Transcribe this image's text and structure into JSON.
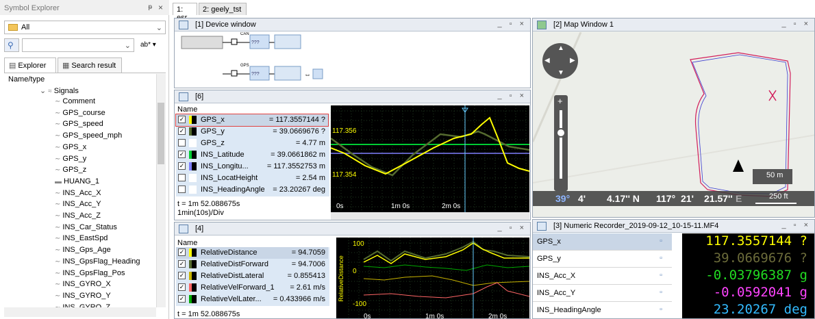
{
  "left_panel": {
    "title": "Symbol Explorer",
    "pin_icon": "pin-icon",
    "close_label": "×",
    "filter_value": "All",
    "search_value": "",
    "search_option": "ab*",
    "tabs": [
      {
        "label": "Explorer"
      },
      {
        "label": "Search result"
      }
    ],
    "tree_header": "Name/type",
    "tree_root": "Signals",
    "items": [
      "Comment",
      "GPS_course",
      "GPS_speed",
      "GPS_speed_mph",
      "GPS_x",
      "GPS_y",
      "GPS_z",
      "HUANG_1",
      "INS_Acc_X",
      "INS_Acc_Y",
      "INS_Acc_Z",
      "INS_Car_Status",
      "INS_EastSpd",
      "INS_Gps_Age",
      "INS_GpsFlag_Heading",
      "INS_GpsFlag_Pos",
      "INS_GYRO_X",
      "INS_GYRO_Y",
      "INS_GYRO_Z"
    ]
  },
  "doc_tabs": [
    "1: esr",
    "2: geely_tst"
  ],
  "device_window": {
    "title": "[1] Device window",
    "blocks": [
      "CAN",
      "GPS"
    ]
  },
  "plot6": {
    "title": "[6]",
    "col_header": "Name",
    "rows": [
      {
        "name": "GPS_x",
        "value": "= 117.3557144 ?",
        "checked": true,
        "color": "#ffff00"
      },
      {
        "name": "GPS_y",
        "value": "= 39.0669676 ?",
        "checked": true,
        "color": "#556b2f"
      },
      {
        "name": "GPS_z",
        "value": "= 4.77 m",
        "checked": false,
        "color": "#ffffff"
      },
      {
        "name": "INS_Latitude",
        "value": "= 39.0661862 m",
        "checked": true,
        "color": "#00cc33"
      },
      {
        "name": "INS_Longitu...",
        "value": "= 117.3552753 m",
        "checked": true,
        "color": "#8080ff"
      },
      {
        "name": "INS_LocatHeight",
        "value": "= 2.54 m",
        "checked": false,
        "color": "#ffffff"
      },
      {
        "name": "INS_HeadingAngle",
        "value": "= 23.20267 deg",
        "checked": false,
        "color": "#ffffff"
      }
    ],
    "time": "t = 1m 52.088675s",
    "div": "1min(10s)/Div",
    "y_ticks": [
      "117.356",
      "117.354"
    ],
    "x_ticks": [
      "0s",
      "1m 0s",
      "2m 0s"
    ]
  },
  "plot4": {
    "title": "[4]",
    "col_header": "Name",
    "rows": [
      {
        "name": "RelativeDistance",
        "value": "= 94.7059",
        "color": "#ffff00"
      },
      {
        "name": "RelativeDistForward",
        "value": "= 94.7006",
        "color": "#556b2f"
      },
      {
        "name": "RelativeDistLateral",
        "value": "= 0.855413",
        "color": "#c8b400"
      },
      {
        "name": "RelativeVelForward_1",
        "value": "= 2.61 m/s",
        "color": "#ff6666"
      },
      {
        "name": "RelativeVelLater...",
        "value": "= 0.433966 m/s",
        "color": "#00aa00"
      }
    ],
    "time": "t = 1m 52.088675s",
    "y_ticks": [
      "100",
      "0",
      "-100"
    ],
    "y_axis_label": "RelativeDistance",
    "x_ticks": [
      "0s",
      "1m 0s",
      "2m 0s"
    ]
  },
  "map": {
    "title": "[2] Map Window 1",
    "scale_m": "50 m",
    "scale_ft": "250 ft",
    "coords": {
      "lat_deg": "39°",
      "lat_min": "4'",
      "lat_sec": "4.17'' N",
      "lon_deg": "117°",
      "lon_min": "21'",
      "lon_sec": "21.57''",
      "lon_dir": "E"
    }
  },
  "numeric": {
    "title": "[3] Numeric Recorder_2019-09-12_10-15-11.MF4",
    "rows": [
      {
        "name": "GPS_x",
        "value": "117.3557144 ?",
        "color": "#ffff00"
      },
      {
        "name": "GPS_y",
        "value": "39.0669676 ?",
        "color": "#6b6b3a"
      },
      {
        "name": "INS_Acc_X",
        "value": "-0.03796387 g",
        "color": "#22dd22"
      },
      {
        "name": "INS_Acc_Y",
        "value": "-0.0592041 g",
        "color": "#ff44ff"
      },
      {
        "name": "INS_HeadingAngle",
        "value": "23.20267 deg",
        "color": "#33bbff"
      }
    ]
  }
}
